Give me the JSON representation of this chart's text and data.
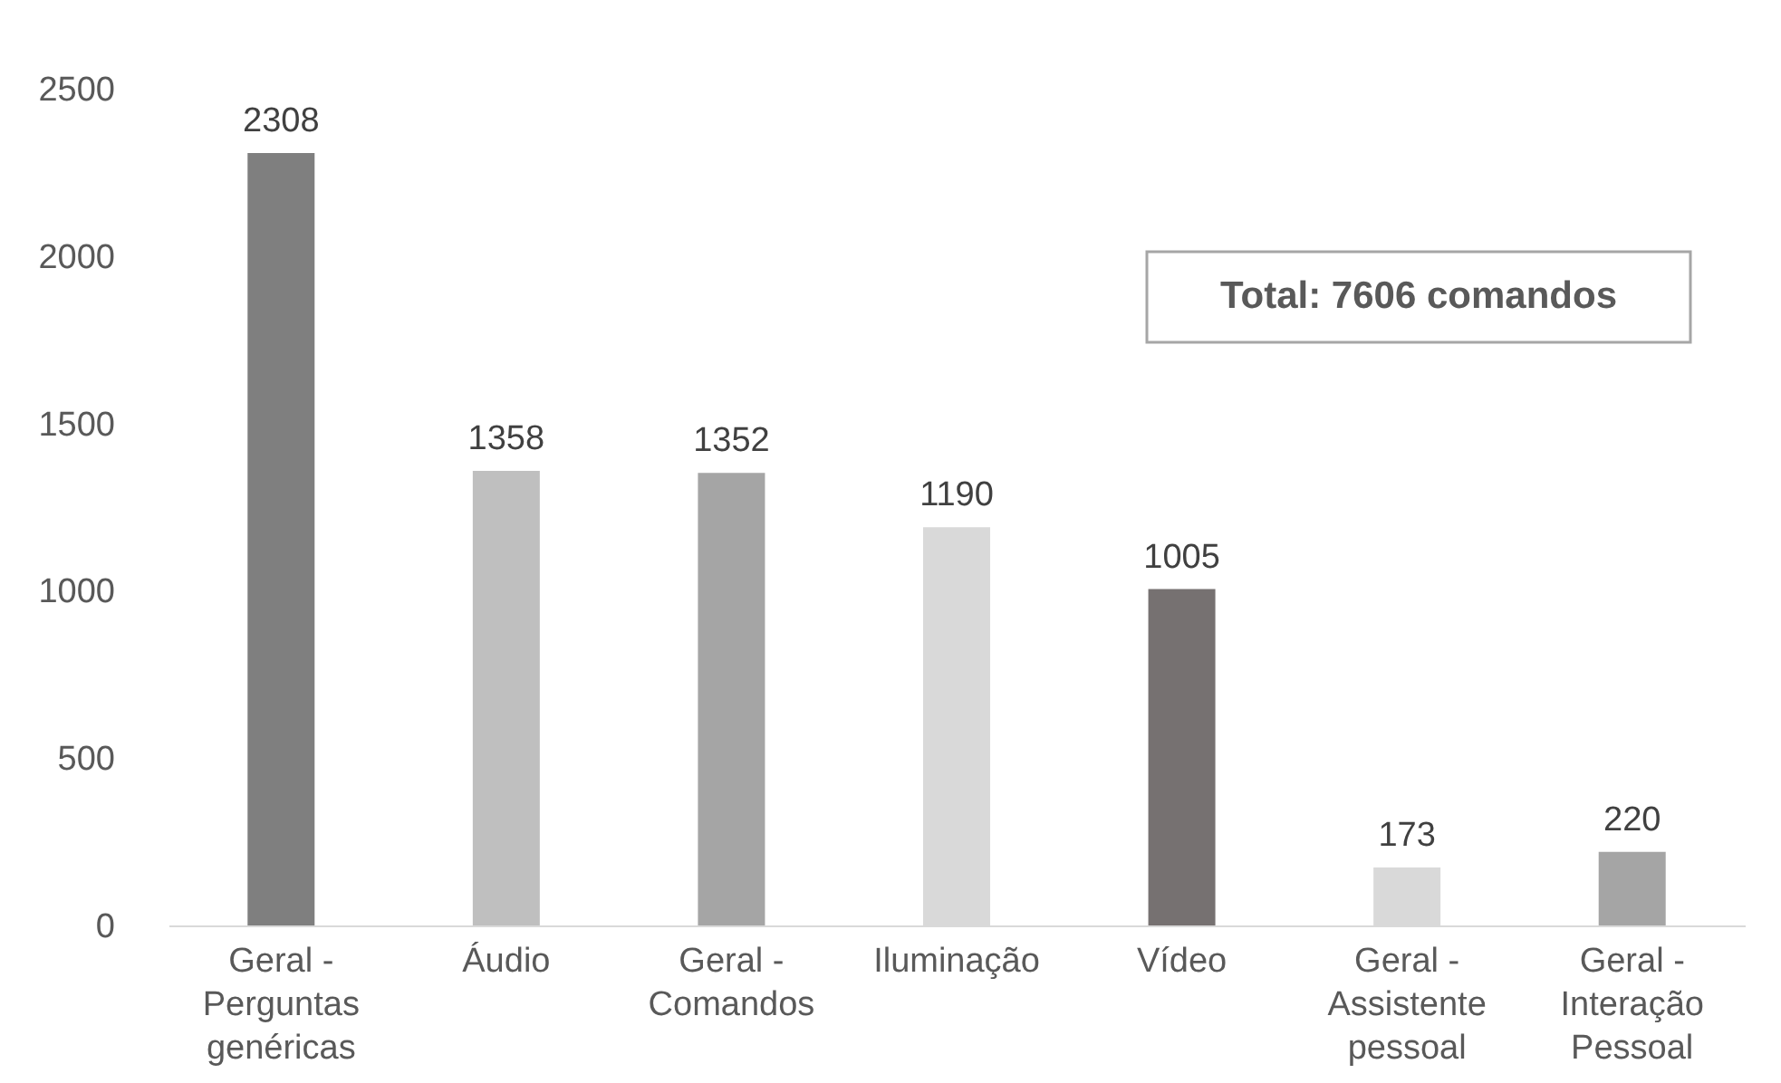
{
  "chart_data": {
    "type": "bar",
    "categories": [
      "Geral -\nPerguntas\ngenéricas",
      "Áudio",
      "Geral -\nComandos",
      "Iluminação",
      "Vídeo",
      "Geral -\nAssistente\npessoal",
      "Geral -\nInteração\nPessoal"
    ],
    "values": [
      2308,
      1358,
      1352,
      1190,
      1005,
      173,
      220
    ],
    "colors": [
      "#7f7f7f",
      "#bfbfbf",
      "#a5a5a5",
      "#d9d9d9",
      "#767171",
      "#d9d9d9",
      "#a5a5a5"
    ],
    "ylim": [
      0,
      2500
    ],
    "yticks": [
      0,
      500,
      1000,
      1500,
      2000,
      2500
    ],
    "grid": false,
    "data_labels": true,
    "annotations": [
      "Total: 7606 comandos"
    ]
  }
}
